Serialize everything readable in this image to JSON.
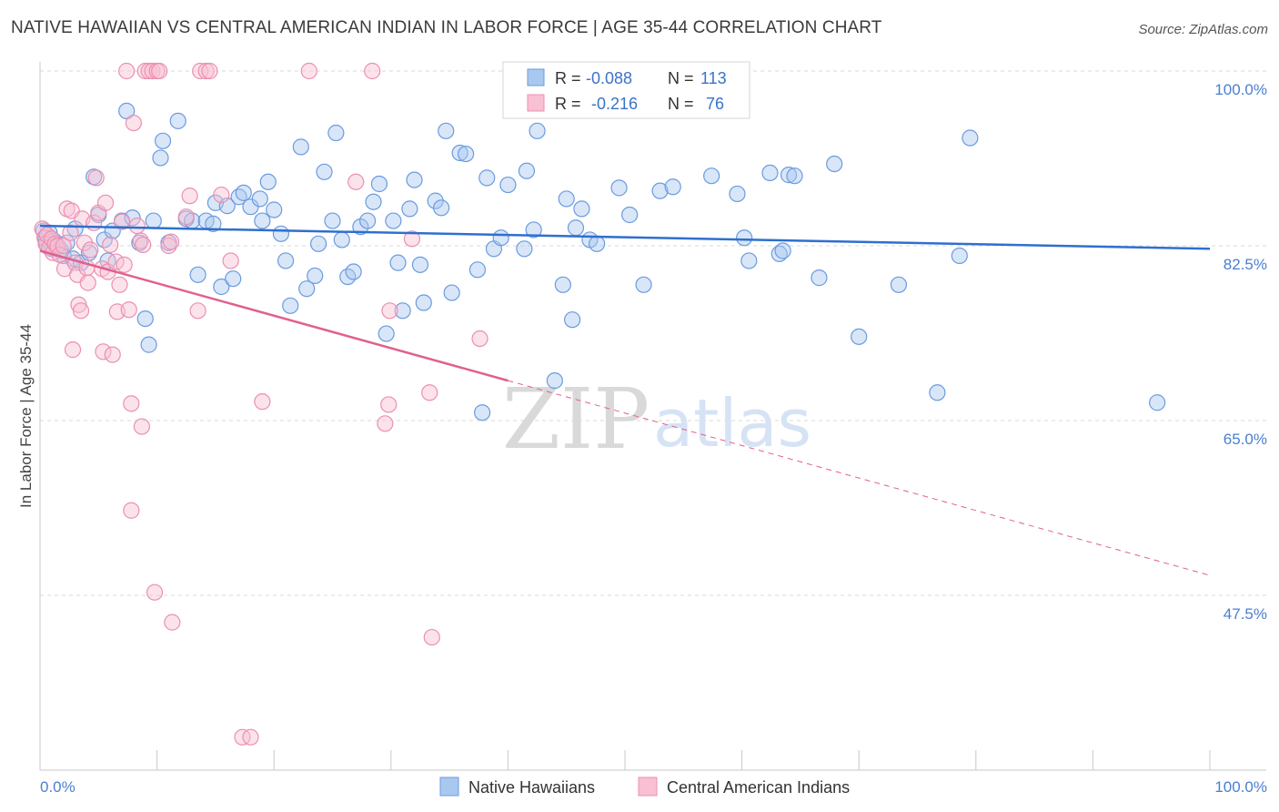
{
  "title": "NATIVE HAWAIIAN VS CENTRAL AMERICAN INDIAN IN LABOR FORCE | AGE 35-44 CORRELATION CHART",
  "source": "Source: ZipAtlas.com",
  "watermark": {
    "zip": "ZIP",
    "atlas": "atlas"
  },
  "colors": {
    "blue_fill": "#a9c8f0",
    "blue_stroke": "#6a9be0",
    "blue_line": "#2f6fcf",
    "pink_fill": "#f8c0d2",
    "pink_stroke": "#ec8fb0",
    "pink_line": "#e0608f",
    "grid": "#d9d9d9",
    "axis_label": "#4a7fd0"
  },
  "chart_data": {
    "type": "scatter",
    "ylabel": "In Labor Force | Age 35-44",
    "xlim": [
      0,
      100
    ],
    "ylim": [
      30,
      102
    ],
    "x_tick_labels": {
      "left": "0.0%",
      "right": "100.0%"
    },
    "y_ticks": [
      {
        "value": 100,
        "label": "100.0%"
      },
      {
        "value": 82.5,
        "label": "82.5%"
      },
      {
        "value": 65,
        "label": "65.0%"
      },
      {
        "value": 47.5,
        "label": "47.5%"
      }
    ],
    "grid": true,
    "legend_placement": "bottom-center",
    "stats": [
      {
        "r_label": "R =",
        "r": "-0.088",
        "n_label": "N =",
        "n": "113"
      },
      {
        "r_label": "R =",
        "r": "-0.216",
        "n_label": "N =",
        "n": "76"
      }
    ],
    "series": [
      {
        "name": "Native Hawaiians",
        "color": "blue",
        "trend": {
          "x1": 0,
          "y1": 84.5,
          "x2": 100,
          "y2": 82.2,
          "dashed_from": null
        },
        "points": [
          [
            0.3,
            84.0
          ],
          [
            0.5,
            83.2
          ],
          [
            0.6,
            82.6
          ],
          [
            0.8,
            83.8
          ],
          [
            1.0,
            82.2
          ],
          [
            1.2,
            83.0
          ],
          [
            1.5,
            82.4
          ],
          [
            1.8,
            82.0
          ],
          [
            2.0,
            81.5
          ],
          [
            2.3,
            82.8
          ],
          [
            2.8,
            81.2
          ],
          [
            3.0,
            84.2
          ],
          [
            3.5,
            80.8
          ],
          [
            4.2,
            81.8
          ],
          [
            4.6,
            89.4
          ],
          [
            5.0,
            85.6
          ],
          [
            5.5,
            83.1
          ],
          [
            5.8,
            81.0
          ],
          [
            6.2,
            84.0
          ],
          [
            7.0,
            85.0
          ],
          [
            7.4,
            96.0
          ],
          [
            7.9,
            85.3
          ],
          [
            8.5,
            82.8
          ],
          [
            9.0,
            75.2
          ],
          [
            9.3,
            72.6
          ],
          [
            9.7,
            85.0
          ],
          [
            10.3,
            91.3
          ],
          [
            10.5,
            93.0
          ],
          [
            11.0,
            82.8
          ],
          [
            11.8,
            95.0
          ],
          [
            12.5,
            85.2
          ],
          [
            13.0,
            85.0
          ],
          [
            13.5,
            79.6
          ],
          [
            14.2,
            85.0
          ],
          [
            14.8,
            84.7
          ],
          [
            15.0,
            86.8
          ],
          [
            15.5,
            78.4
          ],
          [
            16.0,
            86.5
          ],
          [
            16.5,
            79.2
          ],
          [
            17.0,
            87.4
          ],
          [
            17.4,
            87.8
          ],
          [
            18.0,
            86.4
          ],
          [
            18.8,
            87.2
          ],
          [
            19.0,
            85.0
          ],
          [
            19.5,
            88.9
          ],
          [
            20.0,
            86.1
          ],
          [
            20.6,
            83.7
          ],
          [
            21.0,
            81.0
          ],
          [
            21.4,
            76.5
          ],
          [
            22.3,
            92.4
          ],
          [
            22.8,
            78.2
          ],
          [
            23.5,
            79.5
          ],
          [
            23.8,
            82.7
          ],
          [
            24.3,
            89.9
          ],
          [
            25.0,
            85.0
          ],
          [
            25.3,
            93.8
          ],
          [
            25.8,
            83.1
          ],
          [
            26.3,
            79.4
          ],
          [
            26.8,
            79.9
          ],
          [
            27.4,
            84.4
          ],
          [
            28.0,
            85.0
          ],
          [
            28.5,
            86.9
          ],
          [
            29.0,
            88.7
          ],
          [
            29.6,
            73.7
          ],
          [
            30.2,
            85.0
          ],
          [
            30.6,
            80.8
          ],
          [
            31.0,
            76.0
          ],
          [
            31.6,
            86.2
          ],
          [
            32.0,
            89.1
          ],
          [
            32.5,
            80.6
          ],
          [
            32.8,
            76.8
          ],
          [
            33.8,
            87.0
          ],
          [
            34.3,
            86.3
          ],
          [
            34.7,
            94.0
          ],
          [
            35.2,
            77.8
          ],
          [
            35.9,
            91.8
          ],
          [
            36.4,
            91.7
          ],
          [
            37.4,
            80.1
          ],
          [
            37.8,
            65.8
          ],
          [
            38.2,
            89.3
          ],
          [
            38.8,
            82.2
          ],
          [
            39.4,
            83.3
          ],
          [
            40.0,
            88.6
          ],
          [
            41.4,
            82.2
          ],
          [
            41.6,
            90.0
          ],
          [
            42.2,
            84.1
          ],
          [
            42.5,
            94.0
          ],
          [
            44.0,
            69.0
          ],
          [
            44.7,
            78.6
          ],
          [
            45.0,
            87.2
          ],
          [
            45.5,
            75.1
          ],
          [
            45.8,
            84.3
          ],
          [
            46.3,
            86.2
          ],
          [
            47.0,
            83.1
          ],
          [
            47.6,
            82.7
          ],
          [
            49.5,
            88.3
          ],
          [
            50.4,
            85.6
          ],
          [
            51.6,
            78.6
          ],
          [
            53.0,
            88.0
          ],
          [
            54.1,
            88.4
          ],
          [
            57.4,
            89.5
          ],
          [
            59.6,
            87.7
          ],
          [
            60.2,
            83.3
          ],
          [
            60.6,
            81.0
          ],
          [
            62.4,
            89.8
          ],
          [
            63.2,
            81.7
          ],
          [
            63.5,
            82.0
          ],
          [
            64.0,
            89.6
          ],
          [
            64.5,
            89.5
          ],
          [
            66.6,
            79.3
          ],
          [
            67.9,
            90.7
          ],
          [
            70.0,
            73.4
          ],
          [
            73.4,
            78.6
          ],
          [
            76.7,
            67.8
          ],
          [
            78.6,
            81.5
          ],
          [
            79.5,
            93.3
          ],
          [
            95.5,
            66.8
          ]
        ]
      },
      {
        "name": "Central American Indians",
        "color": "pink",
        "trend": {
          "x1": 0,
          "y1": 82.0,
          "x2": 100,
          "y2": 49.5,
          "dashed_from": 40
        },
        "points": [
          [
            0.2,
            84.2
          ],
          [
            0.4,
            83.3
          ],
          [
            0.5,
            82.7
          ],
          [
            0.6,
            83.6
          ],
          [
            0.8,
            82.3
          ],
          [
            1.0,
            83.2
          ],
          [
            1.1,
            81.8
          ],
          [
            1.3,
            82.7
          ],
          [
            1.5,
            82.5
          ],
          [
            1.7,
            81.6
          ],
          [
            2.0,
            82.5
          ],
          [
            2.1,
            80.2
          ],
          [
            2.3,
            86.2
          ],
          [
            2.6,
            83.8
          ],
          [
            2.7,
            86.0
          ],
          [
            2.8,
            72.1
          ],
          [
            3.0,
            80.8
          ],
          [
            3.2,
            79.6
          ],
          [
            3.3,
            76.6
          ],
          [
            3.5,
            76.0
          ],
          [
            3.6,
            85.2
          ],
          [
            3.8,
            82.8
          ],
          [
            4.0,
            80.3
          ],
          [
            4.1,
            78.8
          ],
          [
            4.3,
            82.1
          ],
          [
            4.6,
            84.8
          ],
          [
            4.8,
            89.3
          ],
          [
            5.0,
            85.8
          ],
          [
            5.3,
            80.2
          ],
          [
            5.4,
            71.9
          ],
          [
            5.6,
            86.8
          ],
          [
            5.8,
            79.9
          ],
          [
            6.0,
            82.6
          ],
          [
            6.2,
            71.6
          ],
          [
            6.5,
            80.9
          ],
          [
            6.6,
            75.9
          ],
          [
            6.8,
            78.6
          ],
          [
            7.0,
            84.9
          ],
          [
            7.2,
            80.6
          ],
          [
            7.4,
            100.0
          ],
          [
            7.6,
            76.1
          ],
          [
            7.8,
            66.7
          ],
          [
            7.8,
            56.0
          ],
          [
            8.0,
            94.8
          ],
          [
            8.3,
            84.5
          ],
          [
            8.6,
            83.0
          ],
          [
            8.7,
            64.4
          ],
          [
            8.8,
            82.6
          ],
          [
            9.0,
            100.0
          ],
          [
            9.3,
            100.0
          ],
          [
            9.6,
            100.0
          ],
          [
            9.8,
            47.8
          ],
          [
            10.0,
            100.0
          ],
          [
            10.2,
            100.0
          ],
          [
            11.0,
            82.5
          ],
          [
            11.2,
            82.9
          ],
          [
            11.3,
            44.8
          ],
          [
            12.5,
            85.4
          ],
          [
            12.8,
            87.5
          ],
          [
            13.5,
            76.0
          ],
          [
            13.7,
            100.0
          ],
          [
            14.2,
            100.0
          ],
          [
            14.5,
            100.0
          ],
          [
            15.5,
            87.6
          ],
          [
            16.3,
            81.0
          ],
          [
            17.3,
            33.3
          ],
          [
            18.0,
            33.3
          ],
          [
            19.0,
            66.9
          ],
          [
            23.0,
            100.0
          ],
          [
            27.0,
            88.9
          ],
          [
            28.4,
            100.0
          ],
          [
            29.5,
            64.7
          ],
          [
            29.8,
            66.6
          ],
          [
            29.9,
            76.0
          ],
          [
            31.8,
            83.2
          ],
          [
            33.3,
            67.8
          ],
          [
            33.5,
            43.3
          ],
          [
            37.6,
            73.2
          ]
        ]
      }
    ]
  }
}
